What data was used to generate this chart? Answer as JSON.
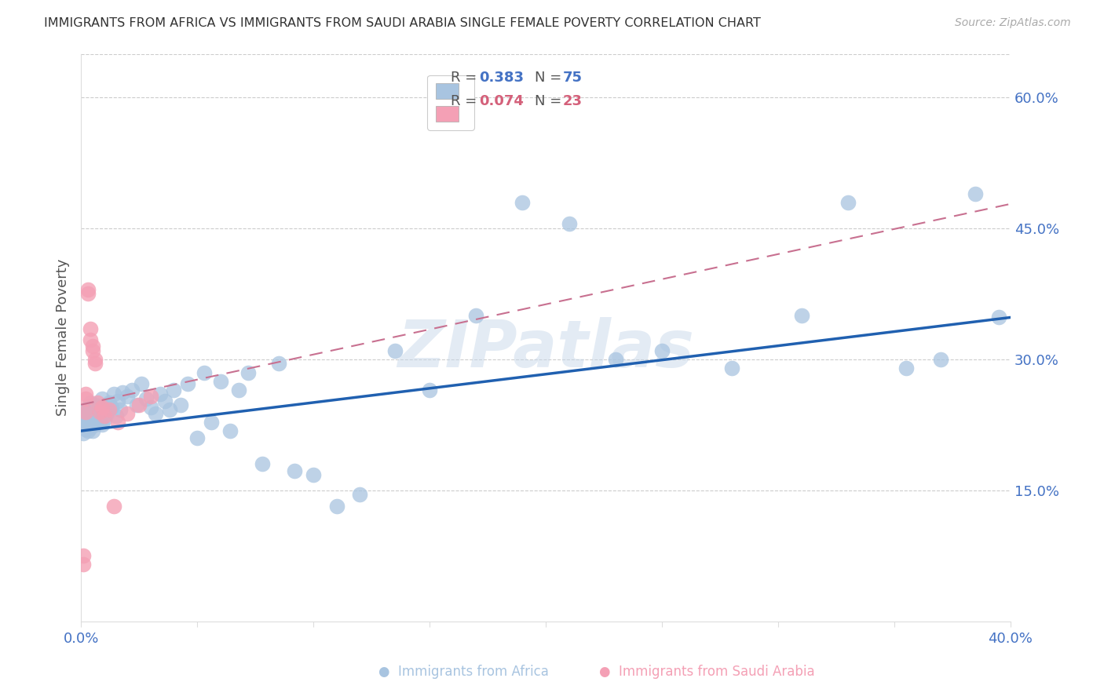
{
  "title": "IMMIGRANTS FROM AFRICA VS IMMIGRANTS FROM SAUDI ARABIA SINGLE FEMALE POVERTY CORRELATION CHART",
  "source": "Source: ZipAtlas.com",
  "ylabel": "Single Female Poverty",
  "xlim": [
    0.0,
    0.4
  ],
  "ylim": [
    0.0,
    0.65
  ],
  "yticks_right": [
    0.15,
    0.3,
    0.45,
    0.6
  ],
  "ytick_labels_right": [
    "15.0%",
    "30.0%",
    "45.0%",
    "60.0%"
  ],
  "xtick_positions": [
    0.0,
    0.05,
    0.1,
    0.15,
    0.2,
    0.25,
    0.3,
    0.35,
    0.4
  ],
  "xtick_labels": [
    "0.0%",
    "",
    "",
    "",
    "",
    "",
    "",
    "",
    "40.0%"
  ],
  "africa_R": 0.383,
  "africa_N": 75,
  "saudi_R": 0.074,
  "saudi_N": 23,
  "africa_color": "#a8c4e0",
  "saudi_color": "#f4a0b5",
  "africa_line_color": "#2060b0",
  "saudi_line_color": "#c87090",
  "watermark": "ZIPatlas",
  "axis_label_color": "#4472c4",
  "legend_R_color_africa": "#4472c4",
  "legend_N_color_africa": "#4472c4",
  "legend_R_color_saudi": "#d4607a",
  "legend_N_color_saudi": "#d4607a",
  "africa_x": [
    0.001,
    0.001,
    0.002,
    0.002,
    0.002,
    0.002,
    0.003,
    0.003,
    0.003,
    0.003,
    0.004,
    0.004,
    0.004,
    0.005,
    0.005,
    0.005,
    0.006,
    0.006,
    0.006,
    0.007,
    0.007,
    0.008,
    0.008,
    0.009,
    0.009,
    0.01,
    0.01,
    0.011,
    0.012,
    0.013,
    0.014,
    0.015,
    0.016,
    0.017,
    0.018,
    0.02,
    0.022,
    0.024,
    0.026,
    0.028,
    0.03,
    0.032,
    0.034,
    0.036,
    0.038,
    0.04,
    0.043,
    0.046,
    0.05,
    0.053,
    0.056,
    0.06,
    0.064,
    0.068,
    0.072,
    0.078,
    0.085,
    0.092,
    0.1,
    0.11,
    0.12,
    0.135,
    0.15,
    0.17,
    0.19,
    0.21,
    0.23,
    0.25,
    0.28,
    0.31,
    0.33,
    0.355,
    0.37,
    0.385,
    0.395
  ],
  "africa_y": [
    0.215,
    0.225,
    0.23,
    0.22,
    0.24,
    0.235,
    0.228,
    0.238,
    0.218,
    0.245,
    0.222,
    0.232,
    0.25,
    0.228,
    0.24,
    0.218,
    0.235,
    0.248,
    0.225,
    0.23,
    0.242,
    0.228,
    0.238,
    0.255,
    0.225,
    0.232,
    0.245,
    0.238,
    0.25,
    0.245,
    0.26,
    0.235,
    0.252,
    0.242,
    0.262,
    0.258,
    0.265,
    0.248,
    0.272,
    0.255,
    0.245,
    0.238,
    0.26,
    0.252,
    0.242,
    0.265,
    0.248,
    0.272,
    0.21,
    0.285,
    0.228,
    0.275,
    0.218,
    0.265,
    0.285,
    0.18,
    0.295,
    0.172,
    0.168,
    0.132,
    0.145,
    0.31,
    0.265,
    0.35,
    0.48,
    0.455,
    0.3,
    0.31,
    0.29,
    0.35,
    0.48,
    0.29,
    0.3,
    0.49,
    0.348
  ],
  "saudi_x": [
    0.001,
    0.001,
    0.002,
    0.002,
    0.002,
    0.003,
    0.003,
    0.004,
    0.004,
    0.005,
    0.005,
    0.006,
    0.006,
    0.007,
    0.008,
    0.009,
    0.01,
    0.012,
    0.014,
    0.016,
    0.02,
    0.025,
    0.03
  ],
  "saudi_y": [
    0.065,
    0.075,
    0.24,
    0.255,
    0.26,
    0.375,
    0.38,
    0.322,
    0.335,
    0.31,
    0.315,
    0.3,
    0.295,
    0.25,
    0.24,
    0.245,
    0.235,
    0.242,
    0.132,
    0.228,
    0.238,
    0.248,
    0.258
  ],
  "africa_line_x0": 0.0,
  "africa_line_y0": 0.218,
  "africa_line_x1": 0.4,
  "africa_line_y1": 0.348,
  "saudi_line_x0": 0.0,
  "saudi_line_y0": 0.248,
  "saudi_line_x1": 0.4,
  "saudi_line_y1": 0.478
}
